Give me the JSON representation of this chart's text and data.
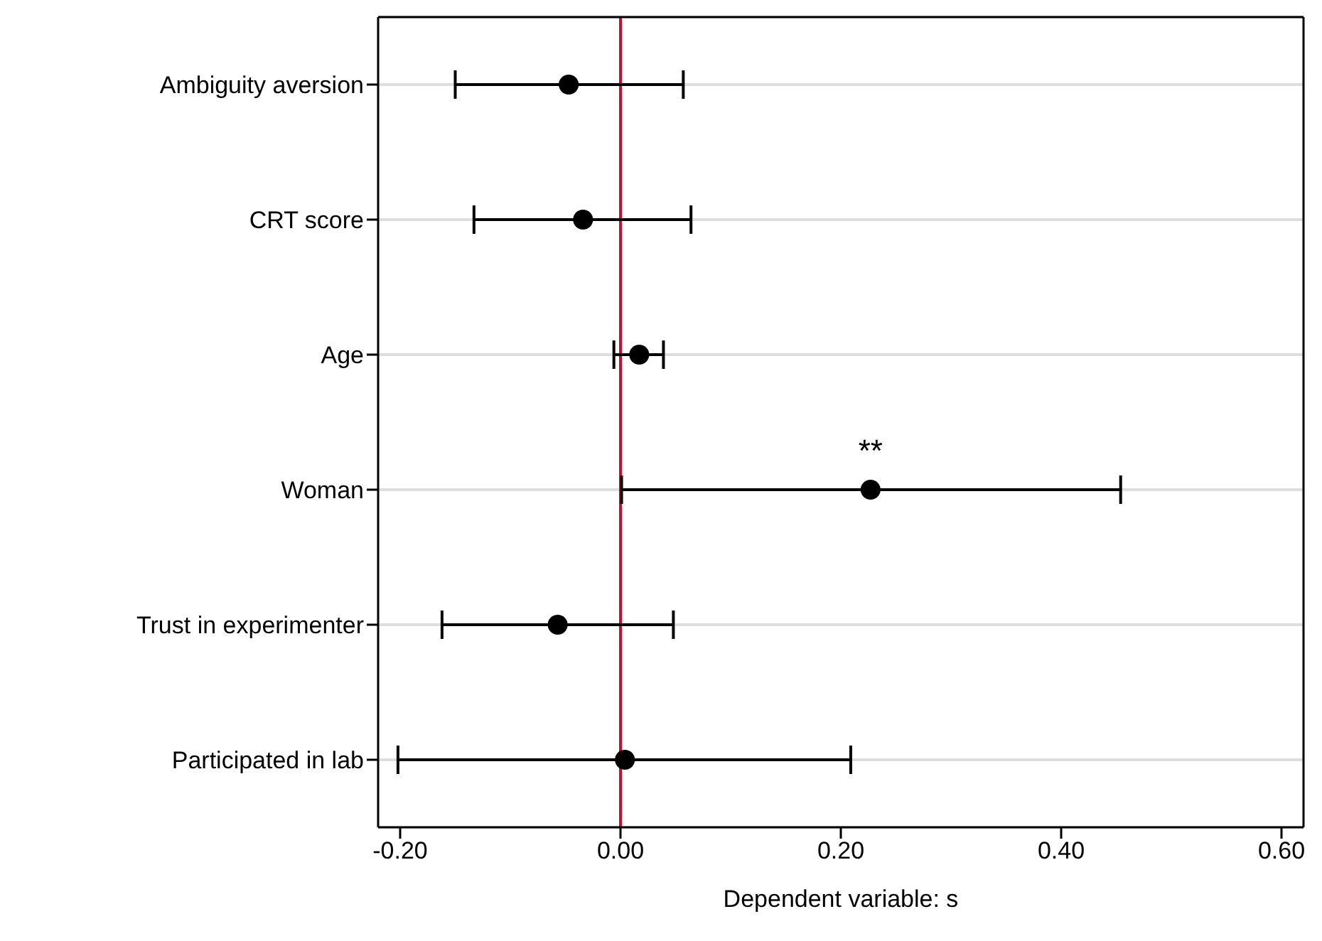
{
  "chart_data": {
    "type": "scatter",
    "xlabel": "Dependent variable: s",
    "categories": [
      "Ambiguity aversion",
      "CRT score",
      "Age",
      "Woman",
      "Trust in experimenter",
      "Participated in lab"
    ],
    "orientation": "horizontal",
    "values": [
      -0.047,
      -0.034,
      0.017,
      0.227,
      -0.057,
      0.004
    ],
    "errors": [
      [
        -0.15,
        0.057
      ],
      [
        -0.133,
        0.064
      ],
      [
        -0.006,
        0.039
      ],
      [
        0.001,
        0.454
      ],
      [
        -0.162,
        0.048
      ],
      [
        -0.202,
        0.209
      ]
    ],
    "color": "#000000",
    "marker": "circle",
    "xlim": [
      -0.22,
      0.62
    ],
    "xticks": [
      {
        "value": -0.2,
        "label": "-0.20"
      },
      {
        "value": 0,
        "label": "0.00"
      },
      {
        "value": 0.2,
        "label": "0.20"
      },
      {
        "value": 0.4,
        "label": "0.40"
      },
      {
        "value": 0.6,
        "label": "0.60"
      }
    ],
    "ref_lines": [
      {
        "axis": "x",
        "value": 0,
        "color": "#c8102e"
      }
    ],
    "annotations": [
      {
        "text": "**",
        "x": 0.227,
        "y": "Woman"
      }
    ],
    "grid": "y",
    "legend": false
  }
}
